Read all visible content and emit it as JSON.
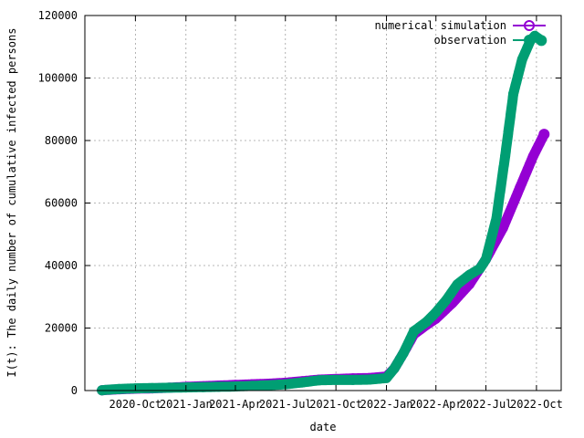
{
  "chart_data": {
    "type": "scatter",
    "title": "",
    "xlabel": "date",
    "ylabel": "I(t): The daily number of cumulative infected persons",
    "x_axis_type": "date",
    "xlim": [
      "2020-07-01",
      "2022-11-15"
    ],
    "ylim": [
      0,
      120000
    ],
    "xticks": [
      {
        "label": "2020-Oct",
        "date": "2020-10-01"
      },
      {
        "label": "2021-Jan",
        "date": "2021-01-01"
      },
      {
        "label": "2021-Apr",
        "date": "2021-04-01"
      },
      {
        "label": "2021-Jul",
        "date": "2021-07-01"
      },
      {
        "label": "2021-Oct",
        "date": "2021-10-01"
      },
      {
        "label": "2022-Jan",
        "date": "2022-01-01"
      },
      {
        "label": "2022-Apr",
        "date": "2022-04-01"
      },
      {
        "label": "2022-Jul",
        "date": "2022-07-01"
      },
      {
        "label": "2022-Oct",
        "date": "2022-10-01"
      }
    ],
    "yticks": [
      0,
      20000,
      40000,
      60000,
      80000,
      100000,
      120000
    ],
    "grid": true,
    "legend_position": "top-right",
    "series": [
      {
        "name": "numerical simulation",
        "color": "#9400d3",
        "marker": "open-circle",
        "points": [
          [
            "2020-08-01",
            100
          ],
          [
            "2020-09-01",
            400
          ],
          [
            "2020-10-01",
            600
          ],
          [
            "2020-11-01",
            700
          ],
          [
            "2020-12-01",
            900
          ],
          [
            "2021-01-01",
            1200
          ],
          [
            "2021-02-01",
            1400
          ],
          [
            "2021-03-01",
            1600
          ],
          [
            "2021-04-01",
            1800
          ],
          [
            "2021-05-01",
            2000
          ],
          [
            "2021-06-01",
            2200
          ],
          [
            "2021-07-01",
            2500
          ],
          [
            "2021-08-01",
            3000
          ],
          [
            "2021-09-01",
            3500
          ],
          [
            "2021-10-01",
            3700
          ],
          [
            "2021-11-01",
            3900
          ],
          [
            "2021-12-01",
            4000
          ],
          [
            "2022-01-01",
            4500
          ],
          [
            "2022-01-15",
            7000
          ],
          [
            "2022-02-01",
            12000
          ],
          [
            "2022-02-20",
            18000
          ],
          [
            "2022-03-15",
            21000
          ],
          [
            "2022-04-01",
            23000
          ],
          [
            "2022-05-01",
            28000
          ],
          [
            "2022-06-01",
            34000
          ],
          [
            "2022-07-01",
            42000
          ],
          [
            "2022-08-01",
            52000
          ],
          [
            "2022-09-01",
            65000
          ],
          [
            "2022-09-25",
            75000
          ],
          [
            "2022-10-15",
            82000
          ]
        ]
      },
      {
        "name": "observation",
        "color": "#009e73",
        "marker": "open-circle",
        "points": [
          [
            "2020-08-01",
            100
          ],
          [
            "2020-09-01",
            500
          ],
          [
            "2020-10-01",
            700
          ],
          [
            "2020-11-01",
            800
          ],
          [
            "2020-12-01",
            900
          ],
          [
            "2021-01-01",
            1000
          ],
          [
            "2021-02-01",
            1100
          ],
          [
            "2021-03-01",
            1200
          ],
          [
            "2021-04-01",
            1300
          ],
          [
            "2021-05-01",
            1500
          ],
          [
            "2021-06-01",
            1700
          ],
          [
            "2021-07-01",
            2000
          ],
          [
            "2021-08-01",
            2600
          ],
          [
            "2021-09-01",
            3300
          ],
          [
            "2021-10-01",
            3400
          ],
          [
            "2021-11-01",
            3400
          ],
          [
            "2021-12-01",
            3500
          ],
          [
            "2022-01-01",
            4000
          ],
          [
            "2022-01-15",
            7000
          ],
          [
            "2022-02-01",
            12000
          ],
          [
            "2022-02-20",
            19000
          ],
          [
            "2022-03-15",
            22000
          ],
          [
            "2022-04-01",
            25000
          ],
          [
            "2022-04-20",
            29000
          ],
          [
            "2022-05-10",
            34000
          ],
          [
            "2022-06-01",
            37000
          ],
          [
            "2022-06-20",
            39000
          ],
          [
            "2022-07-01",
            42000
          ],
          [
            "2022-07-20",
            55000
          ],
          [
            "2022-08-05",
            75000
          ],
          [
            "2022-08-20",
            95000
          ],
          [
            "2022-09-05",
            106000
          ],
          [
            "2022-09-20",
            112000
          ],
          [
            "2022-09-28",
            113500
          ],
          [
            "2022-10-10",
            112000
          ]
        ]
      }
    ]
  }
}
